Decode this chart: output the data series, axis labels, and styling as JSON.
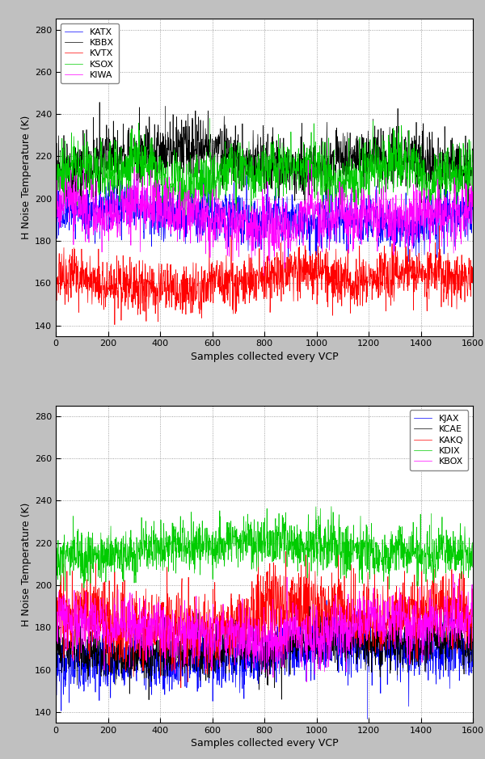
{
  "n_samples": 1600,
  "plot1": {
    "series": [
      {
        "label": "KATX",
        "color": "#0000FF",
        "mean": 195,
        "std": 6,
        "seed": 1
      },
      {
        "label": "KBBX",
        "color": "#000000",
        "mean": 215,
        "std": 7,
        "seed": 2
      },
      {
        "label": "KVTX",
        "color": "#FF0000",
        "mean": 163,
        "std": 6,
        "seed": 3
      },
      {
        "label": "KSOX",
        "color": "#00CC00",
        "mean": 213,
        "std": 7,
        "seed": 4
      },
      {
        "label": "KIWA",
        "color": "#FF00FF",
        "mean": 196,
        "std": 7,
        "seed": 5
      }
    ],
    "ylim": [
      135,
      285
    ],
    "yticks": [
      140,
      160,
      180,
      200,
      220,
      240,
      260,
      280
    ],
    "xlim": [
      0,
      1600
    ],
    "xticks": [
      0,
      200,
      400,
      600,
      800,
      1000,
      1200,
      1400,
      1600
    ],
    "xlabel": "Samples collected every VCP",
    "ylabel": "H Noise Temperature (K)",
    "legend_loc": "upper left"
  },
  "plot2": {
    "series": [
      {
        "label": "KJAX",
        "color": "#0000FF",
        "mean": 165,
        "std": 7,
        "seed": 20
      },
      {
        "label": "KCAE",
        "color": "#000000",
        "mean": 171,
        "std": 6,
        "seed": 21
      },
      {
        "label": "KAKQ",
        "color": "#FF0000",
        "mean": 186,
        "std": 9,
        "seed": 22
      },
      {
        "label": "KDIX",
        "color": "#00CC00",
        "mean": 212,
        "std": 6,
        "seed": 23
      },
      {
        "label": "KBOX",
        "color": "#FF00FF",
        "mean": 183,
        "std": 7,
        "seed": 24
      }
    ],
    "ylim": [
      135,
      285
    ],
    "yticks": [
      140,
      160,
      180,
      200,
      220,
      240,
      260,
      280
    ],
    "xlim": [
      0,
      1600
    ],
    "xticks": [
      0,
      200,
      400,
      600,
      800,
      1000,
      1200,
      1400,
      1600
    ],
    "xlabel": "Samples collected every VCP",
    "ylabel": "H Noise Temperature (K)",
    "legend_loc": "upper right"
  },
  "fig_bg": "#C0C0C0",
  "axes_bg": "#FFFFFF",
  "linewidth": 0.5,
  "fontsize_label": 9,
  "fontsize_tick": 8,
  "fontsize_legend": 8
}
